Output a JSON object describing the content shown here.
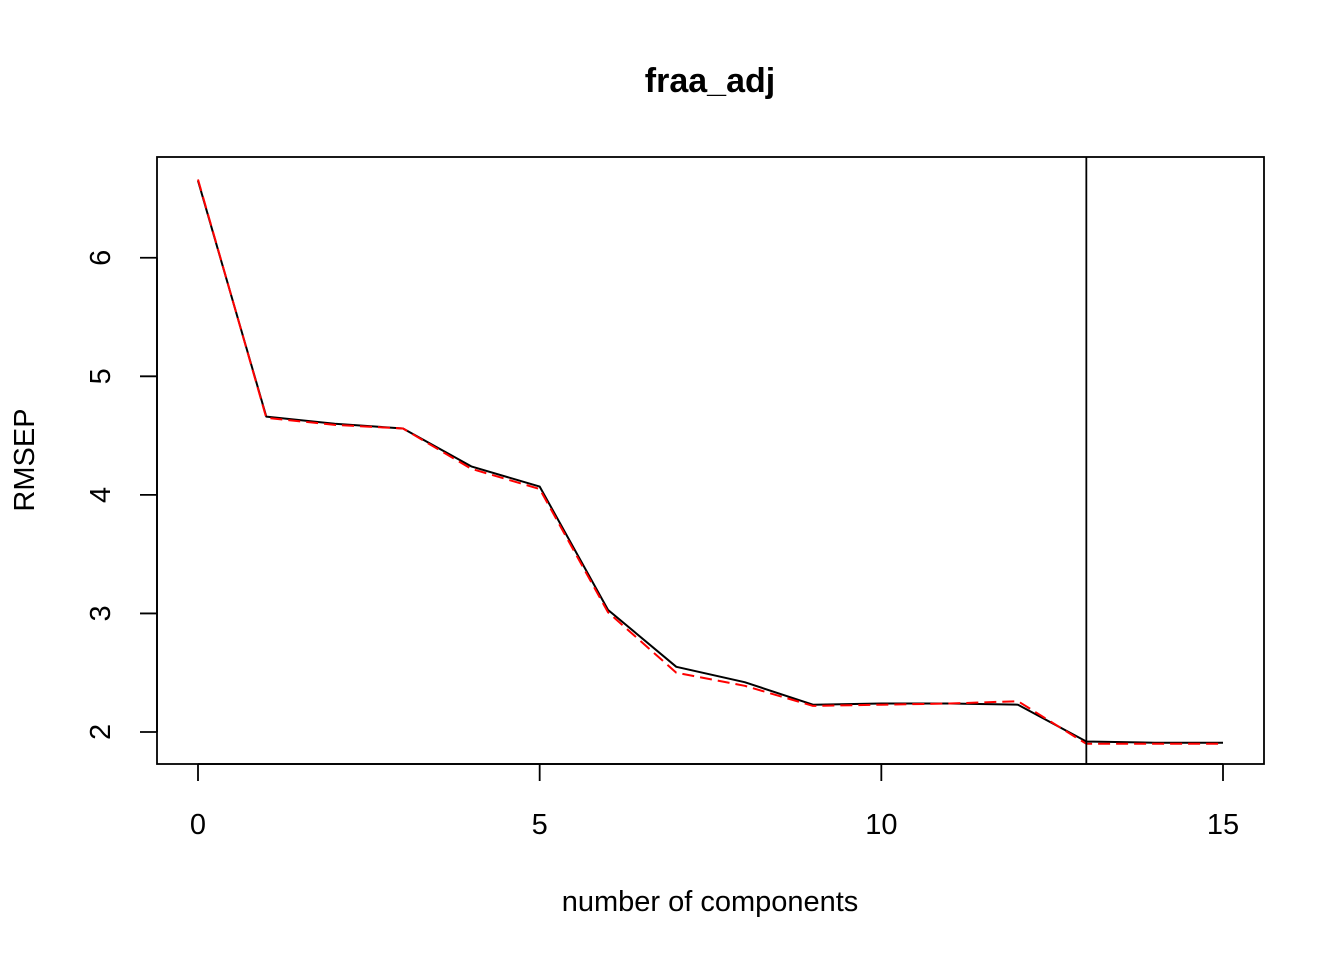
{
  "chart_data": {
    "type": "line",
    "title": "fraa_adj",
    "xlabel": "number of components",
    "ylabel": "RMSEP",
    "xlim": [
      -0.6,
      15.6
    ],
    "ylim": [
      1.73,
      6.85
    ],
    "x_ticks": [
      0,
      5,
      10,
      15
    ],
    "y_ticks": [
      2,
      3,
      4,
      5,
      6
    ],
    "vline_x": 13,
    "colors": {
      "series_cv": "#000000",
      "series_adjcv": "#ff0000"
    },
    "series": [
      {
        "style": "solid",
        "x": [
          0,
          1,
          2,
          3,
          4,
          5,
          6,
          7,
          8,
          9,
          10,
          11,
          12,
          13,
          14,
          15
        ],
        "values": [
          6.65,
          4.66,
          4.6,
          4.56,
          4.24,
          4.07,
          3.03,
          2.55,
          2.42,
          2.23,
          2.24,
          2.24,
          2.23,
          1.92,
          1.91,
          1.91
        ]
      },
      {
        "style": "dashed",
        "x": [
          0,
          1,
          2,
          3,
          4,
          5,
          6,
          7,
          8,
          9,
          10,
          11,
          12,
          13,
          14,
          15
        ],
        "values": [
          6.66,
          4.65,
          4.59,
          4.56,
          4.22,
          4.05,
          3.01,
          2.5,
          2.39,
          2.22,
          2.23,
          2.24,
          2.26,
          1.9,
          1.9,
          1.9
        ]
      }
    ]
  }
}
